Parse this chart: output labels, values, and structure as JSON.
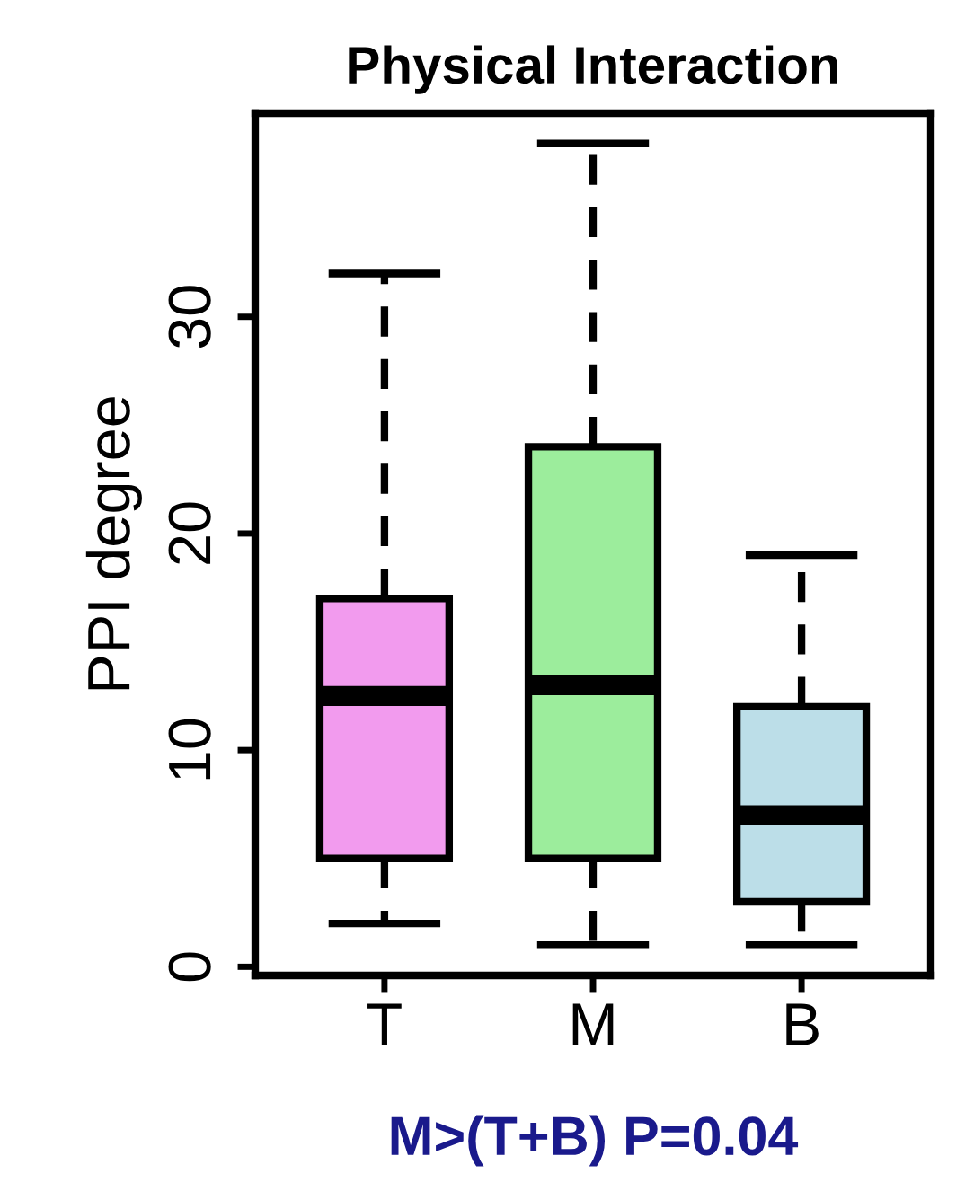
{
  "chart_data": {
    "type": "box",
    "title": "Physical Interaction",
    "ylabel": "PPI degree",
    "categories": [
      "T",
      "M",
      "B"
    ],
    "boxes": [
      {
        "low": 2,
        "q1": 5,
        "median": 12.5,
        "q3": 17,
        "high": 32
      },
      {
        "low": 1,
        "q1": 5,
        "median": 13,
        "q3": 24,
        "high": 38
      },
      {
        "low": 1,
        "q1": 3,
        "median": 7,
        "q3": 12,
        "high": 19
      }
    ],
    "colors": [
      "#f29bee",
      "#9ced9c",
      "#bcdee8"
    ],
    "ylim": [
      -0.4,
      39.4
    ],
    "yticks": [
      0,
      10,
      20,
      30
    ],
    "grid": false,
    "legend": false,
    "annotations": [
      "M>(T+B) P=0.04"
    ]
  }
}
